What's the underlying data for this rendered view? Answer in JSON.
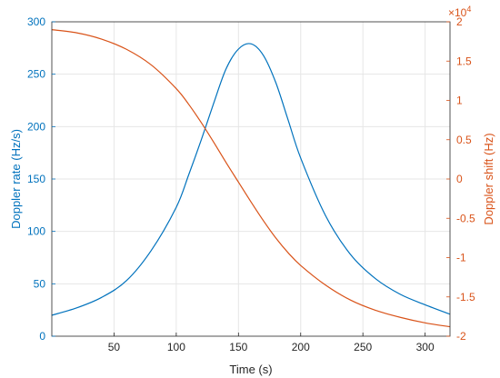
{
  "chart_data": {
    "type": "line",
    "title": "",
    "xlabel": "Time (s)",
    "ylabel_left": "Doppler rate (Hz/s)",
    "ylabel_right": "Doppler shift (Hz)",
    "right_exponent_base": "×10",
    "right_exponent_power": "4",
    "xlim": [
      0,
      320
    ],
    "ylim_left": [
      0,
      300
    ],
    "ylim_right": [
      -20000,
      20000
    ],
    "grid": true,
    "x_ticks": [
      50,
      100,
      150,
      200,
      250,
      300
    ],
    "y_left_ticks": [
      0,
      50,
      100,
      150,
      200,
      250,
      300
    ],
    "y_right_ticks": [
      -2,
      -1.5,
      -1,
      -0.5,
      0,
      0.5,
      1,
      1.5,
      2
    ],
    "colors": {
      "left": "#0072BD",
      "right": "#D95319",
      "axis": "#262626",
      "grid": "#e6e6e6"
    },
    "series": [
      {
        "axis": "left",
        "x": [
          0,
          20,
          40,
          60,
          80,
          100,
          110,
          120,
          130,
          140,
          150,
          160,
          170,
          180,
          190,
          200,
          220,
          240,
          260,
          280,
          300,
          320
        ],
        "values": [
          20,
          27,
          37,
          53,
          82,
          123,
          154,
          187,
          222,
          255,
          274,
          279,
          268,
          242,
          206,
          170,
          115,
          78,
          55,
          40,
          30,
          21
        ]
      },
      {
        "axis": "right",
        "x": [
          0,
          20,
          40,
          60,
          80,
          100,
          110,
          120,
          130,
          140,
          150,
          160,
          170,
          180,
          190,
          200,
          220,
          240,
          260,
          280,
          300,
          320
        ],
        "values": [
          19000,
          18600,
          17800,
          16500,
          14500,
          11500,
          9500,
          7200,
          4700,
          2100,
          -400,
          -2900,
          -5300,
          -7500,
          -9400,
          -11000,
          -13500,
          -15400,
          -16700,
          -17600,
          -18300,
          -18800
        ]
      }
    ]
  }
}
